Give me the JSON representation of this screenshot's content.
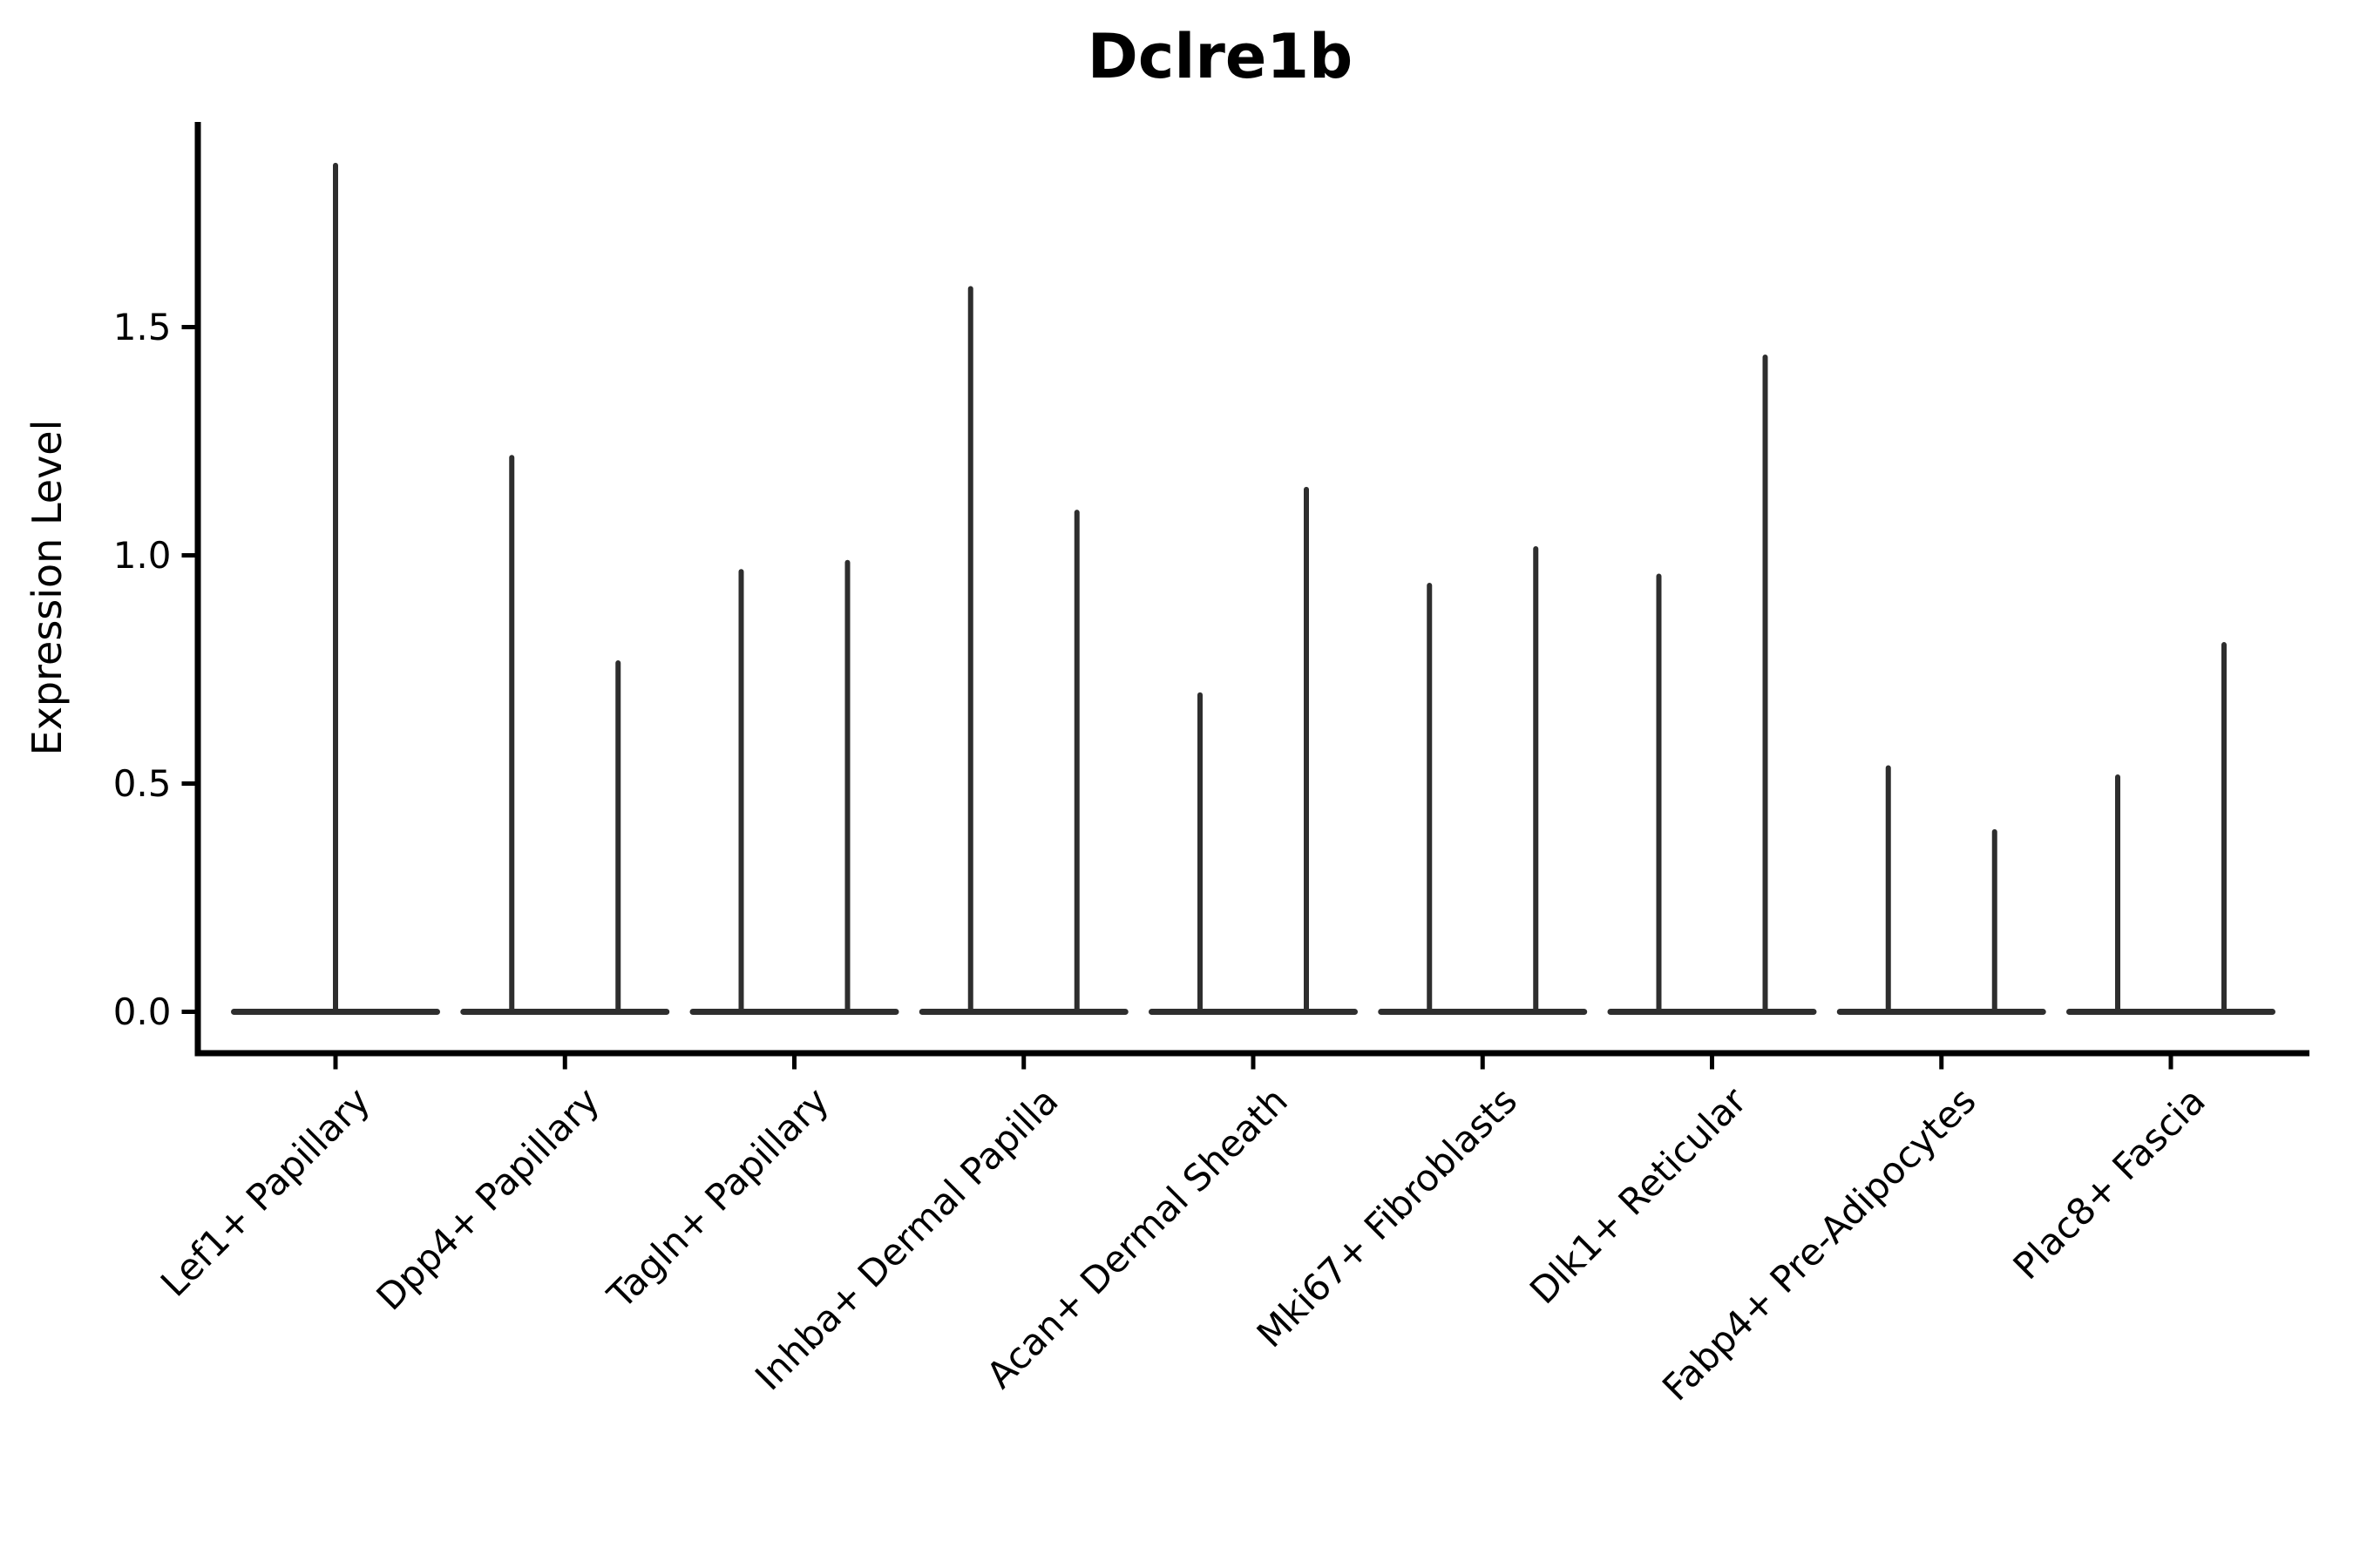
{
  "chart_data": {
    "type": "violin",
    "title": "Dclre1b",
    "xlabel": "",
    "ylabel": "Expression Level",
    "yticks": [
      0.0,
      0.5,
      1.0,
      1.5
    ],
    "ytick_labels": [
      "0.0",
      "0.5",
      "1.0",
      "1.5"
    ],
    "ylim": [
      -0.09,
      1.95
    ],
    "grid": false,
    "spines": [
      "left",
      "bottom"
    ],
    "xtick_rotation": 45,
    "legend": "none",
    "categories": [
      "Lef1+ Papillary",
      "Dpp4+ Papillary",
      "Tagln+ Papillary",
      "Inhba+ Dermal Papilla",
      "Acan+ Dermal Sheath",
      "Mki67+ Fibroblasts",
      "Dlk1+ Reticular",
      "Fabp4+ Pre-Adipocytes",
      "Plac8+ Fascia"
    ],
    "violins": [
      {
        "category": "Lef1+ Papillary",
        "max_values": [
          1.86
        ]
      },
      {
        "category": "Dpp4+ Papillary",
        "max_values": [
          1.22,
          0.77
        ]
      },
      {
        "category": "Tagln+ Papillary",
        "max_values": [
          0.97,
          0.99
        ]
      },
      {
        "category": "Inhba+ Dermal Papilla",
        "max_values": [
          1.59,
          1.1
        ]
      },
      {
        "category": "Acan+ Dermal Sheath",
        "max_values": [
          0.7,
          1.15
        ]
      },
      {
        "category": "Mki67+ Fibroblasts",
        "max_values": [
          0.94,
          1.02
        ]
      },
      {
        "category": "Dlk1+ Reticular",
        "max_values": [
          0.96,
          1.44
        ]
      },
      {
        "category": "Fabp4+ Pre-Adipocytes",
        "max_values": [
          0.54,
          0.4
        ]
      },
      {
        "category": "Plac8+ Fascia",
        "max_values": [
          0.52,
          0.81
        ]
      }
    ],
    "description": "Violin plot of Dclre1b expression per fibroblast cluster; density is concentrated at 0 (wide flat base) with a thin spike up to each violin's maximum expression value.",
    "colors": {
      "violin": "#2e2e2e",
      "axis": "#000000",
      "text": "#000000",
      "background": "#ffffff"
    }
  }
}
